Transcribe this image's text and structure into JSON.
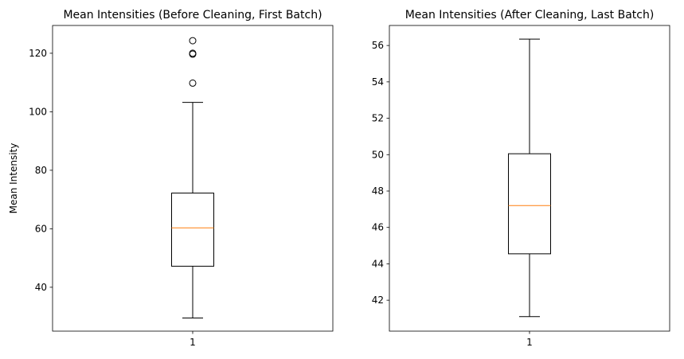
{
  "chart_data": [
    {
      "type": "box",
      "title": "Mean Intensities (Before Cleaning, First Batch)",
      "xlabel": "",
      "ylabel": "Mean Intensity",
      "categories": [
        "1"
      ],
      "ylim": [
        25,
        129.5
      ],
      "yticks": [
        40,
        60,
        80,
        100,
        120
      ],
      "grid": false,
      "box": {
        "whisker_low": 29.5,
        "q1": 47.2,
        "median": 60.3,
        "q3": 72.2,
        "whisker_high": 103.2,
        "outliers": [
          109.8,
          119.7,
          120.0,
          124.3
        ]
      },
      "colors": {
        "median": "#ff7f0e",
        "box": "#000000"
      }
    },
    {
      "type": "box",
      "title": "Mean Intensities (After Cleaning, Last Batch)",
      "xlabel": "",
      "ylabel": "",
      "categories": [
        "1"
      ],
      "ylim": [
        40.3,
        57.1
      ],
      "yticks": [
        42,
        44,
        46,
        48,
        50,
        52,
        54,
        56
      ],
      "grid": false,
      "box": {
        "whisker_low": 41.1,
        "q1": 44.55,
        "median": 47.2,
        "q3": 50.05,
        "whisker_high": 56.35,
        "outliers": []
      },
      "colors": {
        "median": "#ff7f0e",
        "box": "#000000"
      }
    }
  ]
}
